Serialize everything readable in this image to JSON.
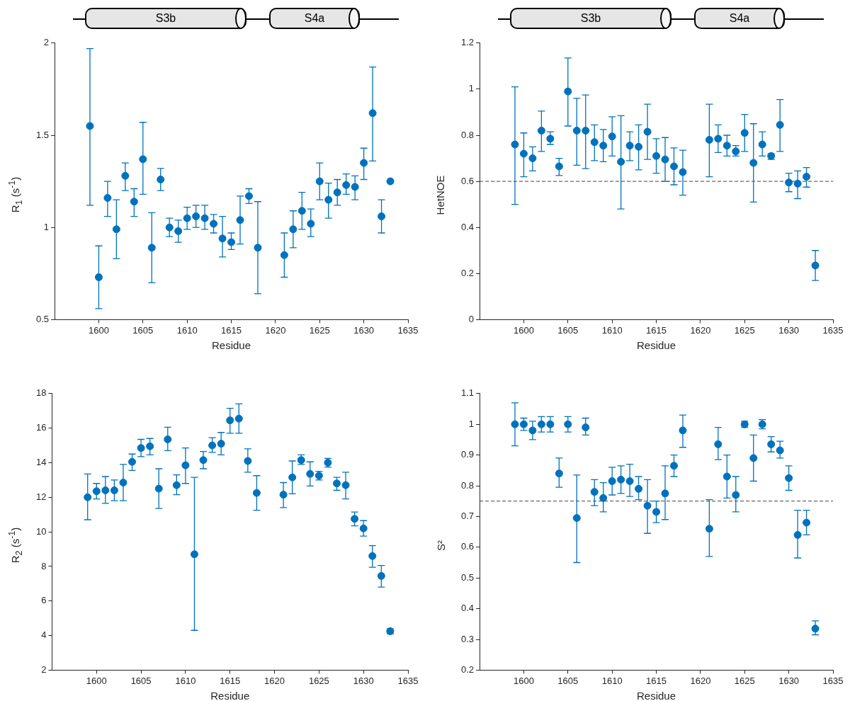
{
  "chart_data": [
    {
      "type": "scatter",
      "annotations": [
        "S3b",
        "S4a"
      ],
      "xlabel": "Residue",
      "ylabel": "R$_{1}$ (s$^{-1}$)",
      "color": "#0072bd",
      "marker": "circle",
      "grid": false,
      "legend": false,
      "xlim": [
        1595,
        1635
      ],
      "xticks": [
        1600,
        1605,
        1610,
        1615,
        1620,
        1625,
        1630,
        1635
      ],
      "ylim": [
        0.5,
        2
      ],
      "yticks": [
        0.5,
        1,
        1.5,
        2
      ],
      "x": [
        1599,
        1600,
        1601,
        1602,
        1603,
        1604,
        1605,
        1606,
        1607,
        1608,
        1609,
        1610,
        1611,
        1612,
        1613,
        1614,
        1615,
        1616,
        1617,
        1618,
        1621,
        1622,
        1623,
        1624,
        1625,
        1626,
        1627,
        1628,
        1629,
        1630,
        1631,
        1632,
        1633
      ],
      "values": [
        1.55,
        0.73,
        1.16,
        0.99,
        1.28,
        1.14,
        1.37,
        0.89,
        1.26,
        1.0,
        0.98,
        1.05,
        1.06,
        1.05,
        1.02,
        0.94,
        0.92,
        1.04,
        1.17,
        0.89,
        0.85,
        0.99,
        1.09,
        1.02,
        1.25,
        1.15,
        1.19,
        1.23,
        1.22,
        1.35,
        1.62,
        1.06,
        1.25
      ],
      "errors": [
        [
          1.12,
          1.97
        ],
        [
          0.56,
          0.9
        ],
        [
          1.06,
          1.25
        ],
        [
          0.83,
          1.15
        ],
        [
          1.2,
          1.35
        ],
        [
          1.06,
          1.21
        ],
        [
          1.18,
          1.57
        ],
        [
          0.7,
          1.08
        ],
        [
          1.2,
          1.32
        ],
        [
          0.95,
          1.05
        ],
        [
          0.92,
          1.04
        ],
        [
          0.99,
          1.11
        ],
        [
          1.0,
          1.12
        ],
        [
          0.99,
          1.12
        ],
        [
          0.97,
          1.07
        ],
        [
          0.84,
          1.06
        ],
        [
          0.88,
          0.97
        ],
        [
          0.91,
          1.17
        ],
        [
          1.13,
          1.21
        ],
        [
          0.64,
          1.14
        ],
        [
          0.73,
          0.97
        ],
        [
          0.89,
          1.09
        ],
        [
          0.99,
          1.19
        ],
        [
          0.95,
          1.1
        ],
        [
          1.15,
          1.35
        ],
        [
          1.05,
          1.24
        ],
        [
          1.12,
          1.26
        ],
        [
          1.18,
          1.29
        ],
        [
          1.15,
          1.28
        ],
        [
          1.26,
          1.43
        ],
        [
          1.36,
          1.87
        ],
        [
          0.97,
          1.15
        ],
        null
      ]
    },
    {
      "type": "scatter",
      "annotations": [
        "S3b",
        "S4a"
      ],
      "xlabel": "Residue",
      "ylabel": "HetNOE",
      "color": "#0072bd",
      "marker": "circle",
      "grid": false,
      "legend": false,
      "xlim": [
        1595,
        1635
      ],
      "xticks": [
        1600,
        1605,
        1610,
        1615,
        1620,
        1625,
        1630,
        1635
      ],
      "ylim": [
        0,
        1.2
      ],
      "yticks": [
        0,
        0.2,
        0.4,
        0.6,
        0.8,
        1,
        1.2
      ],
      "ref_lines": [
        {
          "axis": "y",
          "value": 0.6,
          "color": "#404040",
          "line_style": "dashed"
        }
      ],
      "x": [
        1599,
        1600,
        1601,
        1602,
        1603,
        1604,
        1605,
        1606,
        1607,
        1608,
        1609,
        1610,
        1611,
        1612,
        1613,
        1614,
        1615,
        1616,
        1617,
        1618,
        1621,
        1622,
        1623,
        1624,
        1625,
        1626,
        1627,
        1628,
        1629,
        1630,
        1631,
        1632,
        1633
      ],
      "values": [
        0.76,
        0.72,
        0.7,
        0.82,
        0.785,
        0.665,
        0.99,
        0.82,
        0.82,
        0.77,
        0.755,
        0.795,
        0.685,
        0.755,
        0.75,
        0.815,
        0.71,
        0.695,
        0.665,
        0.64,
        0.78,
        0.785,
        0.755,
        0.73,
        0.81,
        0.68,
        0.76,
        0.71,
        0.845,
        0.595,
        0.59,
        0.62,
        0.235
      ],
      "errors": [
        [
          0.5,
          1.01
        ],
        [
          0.62,
          0.81
        ],
        [
          0.645,
          0.75
        ],
        [
          0.73,
          0.905
        ],
        [
          0.76,
          0.815
        ],
        [
          0.625,
          0.7
        ],
        [
          0.84,
          1.135
        ],
        [
          0.67,
          0.96
        ],
        [
          0.655,
          0.975
        ],
        [
          0.69,
          0.845
        ],
        [
          0.685,
          0.825
        ],
        [
          0.71,
          0.88
        ],
        [
          0.48,
          0.885
        ],
        [
          0.69,
          0.815
        ],
        [
          0.65,
          0.845
        ],
        [
          0.695,
          0.935
        ],
        [
          0.635,
          0.785
        ],
        [
          0.6,
          0.79
        ],
        [
          0.585,
          0.745
        ],
        [
          0.54,
          0.735
        ],
        [
          0.62,
          0.935
        ],
        [
          0.725,
          0.845
        ],
        [
          0.71,
          0.8
        ],
        [
          0.71,
          0.755
        ],
        [
          0.73,
          0.89
        ],
        [
          0.51,
          0.85
        ],
        [
          0.71,
          0.815
        ],
        [
          0.695,
          0.72
        ],
        [
          0.73,
          0.955
        ],
        [
          0.555,
          0.635
        ],
        [
          0.525,
          0.645
        ],
        [
          0.575,
          0.66
        ],
        [
          0.17,
          0.3
        ]
      ]
    },
    {
      "type": "scatter",
      "xlabel": "Residue",
      "ylabel": "R$_{2}$ (s$^{-1}$)",
      "color": "#0072bd",
      "marker": "circle",
      "grid": false,
      "legend": false,
      "xlim": [
        1595,
        1635
      ],
      "xticks": [
        1600,
        1605,
        1610,
        1615,
        1620,
        1625,
        1630,
        1635
      ],
      "ylim": [
        2,
        18
      ],
      "yticks": [
        2,
        4,
        6,
        8,
        10,
        12,
        14,
        16,
        18
      ],
      "x": [
        1599,
        1600,
        1601,
        1602,
        1603,
        1604,
        1605,
        1606,
        1607,
        1608,
        1609,
        1610,
        1611,
        1612,
        1613,
        1614,
        1615,
        1616,
        1617,
        1618,
        1621,
        1622,
        1623,
        1624,
        1625,
        1626,
        1627,
        1628,
        1629,
        1630,
        1631,
        1632,
        1633
      ],
      "values": [
        12.0,
        12.35,
        12.4,
        12.4,
        12.85,
        14.05,
        14.85,
        14.95,
        12.5,
        15.35,
        12.7,
        13.85,
        8.7,
        14.15,
        15.0,
        15.1,
        16.45,
        16.55,
        14.1,
        12.25,
        12.15,
        13.15,
        14.15,
        13.35,
        13.25,
        14.0,
        12.8,
        12.7,
        10.75,
        10.2,
        8.6,
        7.45,
        4.25
      ],
      "errors": [
        [
          10.7,
          13.35
        ],
        [
          11.9,
          12.8
        ],
        [
          11.65,
          13.2
        ],
        [
          11.8,
          13.0
        ],
        [
          11.8,
          13.9
        ],
        [
          13.55,
          14.5
        ],
        [
          14.35,
          15.35
        ],
        [
          14.45,
          15.4
        ],
        [
          11.35,
          13.65
        ],
        [
          14.7,
          16.05
        ],
        [
          12.15,
          13.3
        ],
        [
          12.8,
          14.85
        ],
        [
          4.3,
          13.15
        ],
        [
          13.65,
          14.65
        ],
        [
          14.6,
          15.45
        ],
        [
          14.45,
          15.75
        ],
        [
          15.7,
          17.15
        ],
        [
          15.7,
          17.4
        ],
        [
          13.45,
          14.8
        ],
        [
          11.25,
          13.25
        ],
        [
          11.4,
          12.85
        ],
        [
          12.2,
          14.1
        ],
        [
          13.9,
          14.45
        ],
        [
          12.65,
          14.05
        ],
        [
          13.0,
          13.5
        ],
        [
          13.75,
          14.25
        ],
        [
          12.4,
          13.15
        ],
        [
          11.9,
          13.45
        ],
        [
          10.35,
          11.15
        ],
        [
          9.75,
          10.65
        ],
        [
          7.95,
          9.2
        ],
        [
          6.8,
          8.05
        ],
        [
          4.1,
          4.4
        ]
      ]
    },
    {
      "type": "scatter",
      "xlabel": "Residue",
      "ylabel": "S²",
      "color": "#0072bd",
      "marker": "circle",
      "grid": false,
      "legend": false,
      "xlim": [
        1595,
        1635
      ],
      "xticks": [
        1600,
        1605,
        1610,
        1615,
        1620,
        1625,
        1630,
        1635
      ],
      "ylim": [
        0.2,
        1.1
      ],
      "yticks": [
        0.2,
        0.3,
        0.4,
        0.5,
        0.6,
        0.7,
        0.8,
        0.9,
        1,
        1.1
      ],
      "ref_lines": [
        {
          "axis": "y",
          "value": 0.75,
          "color": "#404040",
          "line_style": "dashed"
        }
      ],
      "x": [
        1599,
        1600,
        1601,
        1602,
        1603,
        1604,
        1605,
        1606,
        1607,
        1608,
        1609,
        1610,
        1611,
        1612,
        1613,
        1614,
        1615,
        1616,
        1617,
        1618,
        1621,
        1622,
        1623,
        1624,
        1625,
        1626,
        1627,
        1628,
        1629,
        1630,
        1631,
        1632,
        1633
      ],
      "values": [
        1.0,
        1.0,
        0.98,
        1.0,
        1.0,
        0.84,
        1.0,
        0.695,
        0.99,
        0.78,
        0.76,
        0.815,
        0.82,
        0.815,
        0.79,
        0.735,
        0.715,
        0.775,
        0.865,
        0.98,
        0.66,
        0.935,
        0.83,
        0.77,
        1.0,
        0.89,
        1.0,
        0.935,
        0.915,
        0.825,
        0.64,
        0.68,
        0.335
      ],
      "errors": [
        [
          0.93,
          1.07
        ],
        [
          0.98,
          1.02
        ],
        [
          0.95,
          1.01
        ],
        [
          0.975,
          1.025
        ],
        [
          0.975,
          1.025
        ],
        [
          0.795,
          0.89
        ],
        [
          0.975,
          1.025
        ],
        [
          0.55,
          0.835
        ],
        [
          0.965,
          1.02
        ],
        [
          0.735,
          0.82
        ],
        [
          0.715,
          0.81
        ],
        [
          0.77,
          0.86
        ],
        [
          0.775,
          0.865
        ],
        [
          0.765,
          0.87
        ],
        [
          0.755,
          0.83
        ],
        [
          0.645,
          0.82
        ],
        [
          0.68,
          0.75
        ],
        [
          0.69,
          0.865
        ],
        [
          0.83,
          0.9
        ],
        [
          0.925,
          1.03
        ],
        [
          0.57,
          0.755
        ],
        [
          0.885,
          0.99
        ],
        [
          0.76,
          0.9
        ],
        [
          0.715,
          0.83
        ],
        [
          0.99,
          1.01
        ],
        [
          0.815,
          0.965
        ],
        [
          0.985,
          1.015
        ],
        [
          0.91,
          0.96
        ],
        [
          0.89,
          0.945
        ],
        [
          0.785,
          0.865
        ],
        [
          0.565,
          0.72
        ],
        [
          0.64,
          0.72
        ],
        [
          0.315,
          0.36
        ]
      ]
    }
  ]
}
